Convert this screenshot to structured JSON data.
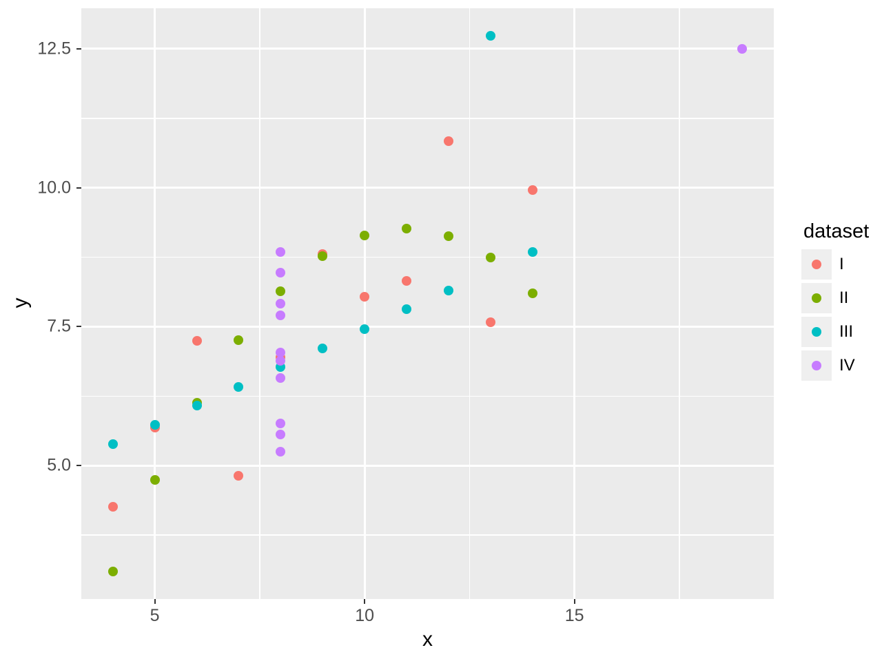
{
  "chart_data": {
    "type": "scatter",
    "title": "",
    "xlabel": "x",
    "ylabel": "y",
    "xlim": [
      3.25,
      19.75
    ],
    "ylim": [
      2.6,
      13.23
    ],
    "x_ticks": [
      5,
      10,
      15
    ],
    "x_tick_labels": [
      "5",
      "10",
      "15"
    ],
    "y_ticks": [
      5.0,
      7.5,
      10.0,
      12.5
    ],
    "y_tick_labels": [
      "5.0",
      "7.5",
      "10.0",
      "12.5"
    ],
    "x_minor_ticks": [
      7.5,
      12.5,
      17.5
    ],
    "y_minor_ticks": [
      3.75,
      6.25,
      8.75,
      11.25
    ],
    "grid": true,
    "panel_bg": "#EBEBEB",
    "grid_color": "#FFFFFF",
    "legend": {
      "title": "dataset",
      "position": "right",
      "entries": [
        {
          "label": "I",
          "color": "#F8766D"
        },
        {
          "label": "II",
          "color": "#7CAE00"
        },
        {
          "label": "III",
          "color": "#00BFC4"
        },
        {
          "label": "IV",
          "color": "#C77CFF"
        }
      ]
    },
    "series": [
      {
        "name": "I",
        "color": "#F8766D",
        "points": [
          [
            10,
            8.04
          ],
          [
            8,
            6.95
          ],
          [
            13,
            7.58
          ],
          [
            9,
            8.81
          ],
          [
            11,
            8.33
          ],
          [
            14,
            9.96
          ],
          [
            6,
            7.24
          ],
          [
            4,
            4.26
          ],
          [
            12,
            10.84
          ],
          [
            7,
            4.82
          ],
          [
            5,
            5.68
          ]
        ]
      },
      {
        "name": "II",
        "color": "#7CAE00",
        "points": [
          [
            10,
            9.14
          ],
          [
            8,
            8.14
          ],
          [
            13,
            8.74
          ],
          [
            9,
            8.77
          ],
          [
            11,
            9.26
          ],
          [
            14,
            8.1
          ],
          [
            6,
            6.13
          ],
          [
            4,
            3.1
          ],
          [
            12,
            9.13
          ],
          [
            7,
            7.26
          ],
          [
            5,
            4.74
          ]
        ]
      },
      {
        "name": "III",
        "color": "#00BFC4",
        "points": [
          [
            10,
            7.46
          ],
          [
            8,
            6.77
          ],
          [
            13,
            12.74
          ],
          [
            9,
            7.11
          ],
          [
            11,
            7.81
          ],
          [
            14,
            8.84
          ],
          [
            6,
            6.08
          ],
          [
            4,
            5.39
          ],
          [
            12,
            8.15
          ],
          [
            7,
            6.42
          ],
          [
            5,
            5.73
          ]
        ]
      },
      {
        "name": "IV",
        "color": "#C77CFF",
        "points": [
          [
            8,
            6.58
          ],
          [
            8,
            5.76
          ],
          [
            8,
            7.71
          ],
          [
            8,
            8.84
          ],
          [
            8,
            8.47
          ],
          [
            8,
            7.04
          ],
          [
            8,
            5.25
          ],
          [
            19,
            12.5
          ],
          [
            8,
            5.56
          ],
          [
            8,
            7.91
          ],
          [
            8,
            6.89
          ]
        ]
      }
    ]
  }
}
